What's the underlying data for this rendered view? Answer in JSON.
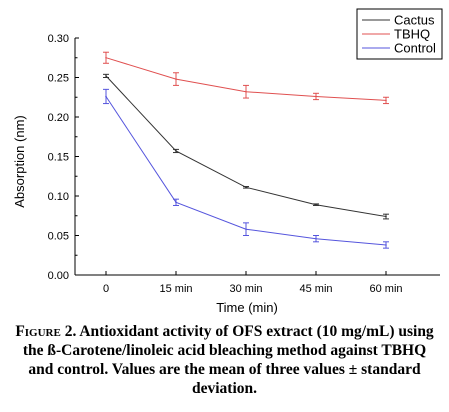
{
  "chart_data": {
    "type": "line",
    "categories": [
      "0",
      "15 min",
      "30 min",
      "45 min",
      "60 min"
    ],
    "xlabel": "Time (min)",
    "ylabel": "Absorption (nm)",
    "ylim": [
      0,
      0.3
    ],
    "yticks": [
      "0.00",
      "0.05",
      "0.10",
      "0.15",
      "0.20",
      "0.25",
      "0.30"
    ],
    "grid": false,
    "legend_position": "top-right",
    "series": [
      {
        "name": "Cactus",
        "color": "#333333",
        "values": [
          0.252,
          0.157,
          0.111,
          0.089,
          0.074
        ],
        "errors": [
          0.002,
          0.002,
          0.001,
          0.001,
          0.003
        ]
      },
      {
        "name": "TBHQ",
        "color": "#e05050",
        "values": [
          0.275,
          0.248,
          0.232,
          0.226,
          0.221
        ],
        "errors": [
          0.007,
          0.008,
          0.008,
          0.004,
          0.004
        ]
      },
      {
        "name": "Control",
        "color": "#5555dd",
        "values": [
          0.226,
          0.092,
          0.058,
          0.046,
          0.038
        ],
        "errors": [
          0.009,
          0.004,
          0.008,
          0.004,
          0.004
        ]
      }
    ]
  },
  "caption": {
    "figure_label": "Figure 2.",
    "text": " Antioxidant activity of OFS extract (10 mg/mL) using the ß-Carotene/linoleic acid bleaching method against TBHQ and control. Values are the mean of three values ± standard deviation."
  }
}
